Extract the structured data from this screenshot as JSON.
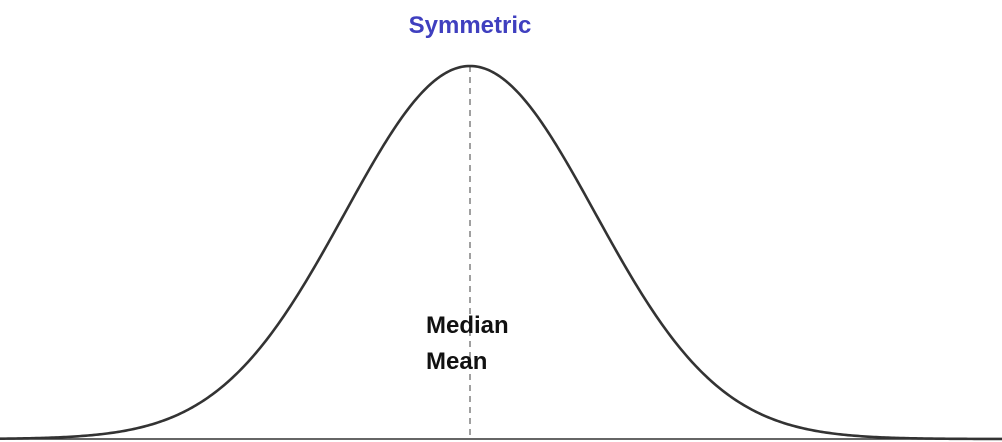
{
  "title": "Symmetric",
  "labels": {
    "median": "Median",
    "mean": "Mean"
  },
  "colors": {
    "title": "#3f3fbf",
    "curve": "#333333",
    "center_line": "#888888",
    "baseline": "#333333",
    "label_text": "#111111"
  }
}
